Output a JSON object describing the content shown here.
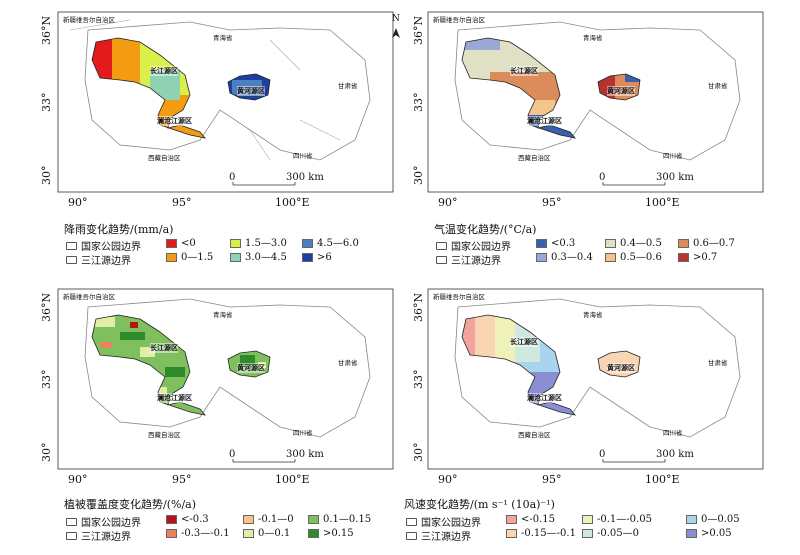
{
  "common": {
    "lat_labels": [
      "36°N",
      "33°",
      "30°"
    ],
    "lon_labels": [
      "90°",
      "95°",
      "100°E"
    ],
    "scale_zero": "0",
    "scale_end": "300 km",
    "north": "N",
    "place_xinjiang": "新疆维吾尔自治区",
    "place_qinghai": "青海省",
    "place_gansu": "甘肃省",
    "place_xizang": "西藏自治区",
    "place_sichuan": "四川省",
    "region_changjiang": "长江源区",
    "region_huanghe": "黄河源区",
    "region_lancang": "澜沧江源区",
    "border_park": "国家公园边界",
    "border_sanjiang": "三江源边界"
  },
  "panels": [
    {
      "legend_title": "降雨变化趋势/(mm/a)",
      "items": [
        {
          "label": "<0",
          "color": "#e31a1c"
        },
        {
          "label": "0—1.5",
          "color": "#f39c12"
        },
        {
          "label": "1.5—3.0",
          "color": "#d9ef4a"
        },
        {
          "label": "3.0—4.5",
          "color": "#8fd1b3"
        },
        {
          "label": "4.5—6.0",
          "color": "#4a7fc1"
        },
        {
          "label": ">6",
          "color": "#1f3f9f"
        }
      ]
    },
    {
      "legend_title": "气温变化趋势/(°C/a)",
      "items": [
        {
          "label": "<0.3",
          "color": "#3a5fb0"
        },
        {
          "label": "0.3—0.4",
          "color": "#9aa8d6"
        },
        {
          "label": "0.4—0.5",
          "color": "#dfe0c4"
        },
        {
          "label": "0.5—0.6",
          "color": "#f2c58a"
        },
        {
          "label": "0.6—0.7",
          "color": "#dc8b5a"
        },
        {
          "label": ">0.7",
          "color": "#b8322e"
        }
      ]
    },
    {
      "legend_title": "植被覆盖度变化趋势/(%/a)",
      "items": [
        {
          "label": "<-0.3",
          "color": "#b3161a"
        },
        {
          "label": "-0.3—-0.1",
          "color": "#e8835e"
        },
        {
          "label": "-0.1—0",
          "color": "#f7c48c"
        },
        {
          "label": "0—0.1",
          "color": "#e4eda7"
        },
        {
          "label": "0.1—0.15",
          "color": "#7fbf5e"
        },
        {
          "label": ">0.15",
          "color": "#2f8a2c"
        }
      ]
    },
    {
      "legend_title": "风速变化趋势/(m s⁻¹ (10a)⁻¹)",
      "items": [
        {
          "label": "<-0.15",
          "color": "#f2a39b"
        },
        {
          "label": "-0.15—-0.1",
          "color": "#f8d6b4"
        },
        {
          "label": "-0.1—-0.05",
          "color": "#eef1b8"
        },
        {
          "label": "-0.05—0",
          "color": "#cfe8e0"
        },
        {
          "label": "0—0.05",
          "color": "#a9d4ee"
        },
        {
          "label": ">0.05",
          "color": "#8a8fd4"
        }
      ]
    }
  ]
}
